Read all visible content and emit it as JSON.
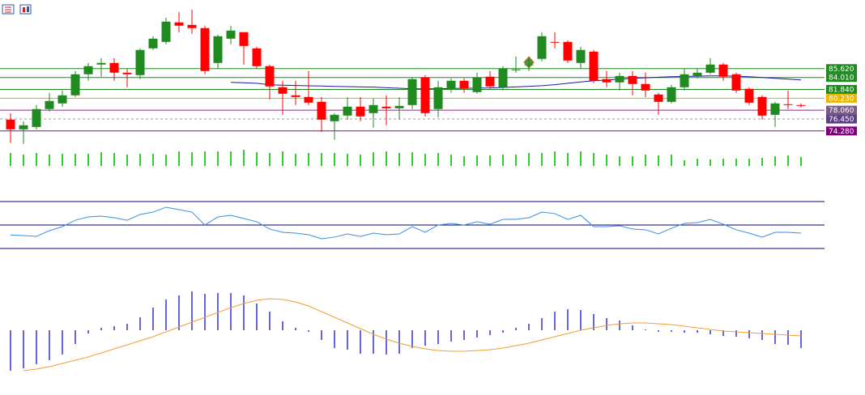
{
  "chart_data": [
    {
      "type": "candlestick",
      "up_color": "#1f8a1f",
      "down_color": "#ff0000",
      "ylim": [
        71.6,
        98.1
      ],
      "open": [
        76.34,
        74.57,
        75.01,
        78.26,
        79.29,
        80.76,
        84.59,
        86.36,
        86.65,
        84.88,
        84.44,
        89.3,
        90.48,
        94.02,
        93.57,
        92.99,
        86.65,
        91.07,
        92.25,
        89.3,
        86.06,
        82.23,
        80.76,
        80.46,
        79.58,
        76.05,
        77.08,
        78.7,
        77.52,
        78.7,
        78.4,
        78.99,
        84.0,
        78.26,
        81.94,
        83.41,
        81.35,
        84.15,
        82.23,
        85.33,
        86.36,
        87.39,
        90.48,
        90.48,
        86.65,
        88.71,
        83.71,
        83.12,
        84.29,
        82.82,
        80.91,
        79.58,
        82.23,
        84.29,
        84.88,
        86.36,
        84.59,
        81.94,
        80.46,
        77.22,
        79.14,
        78.99
      ],
      "high": [
        77.52,
        76.05,
        78.99,
        81.2,
        81.64,
        85.18,
        86.65,
        87.53,
        87.53,
        85.62,
        89.3,
        91.51,
        94.9,
        95.93,
        96.37,
        93.43,
        91.81,
        93.43,
        92.25,
        89.6,
        86.36,
        83.41,
        83.41,
        85.18,
        80.46,
        77.52,
        80.46,
        80.46,
        80.17,
        80.76,
        80.46,
        84.0,
        84.44,
        83.41,
        83.85,
        83.85,
        84.88,
        85.18,
        86.06,
        87.83,
        87.53,
        92.25,
        92.25,
        90.78,
        89.6,
        89.01,
        85.18,
        84.88,
        85.18,
        84.88,
        81.2,
        82.67,
        85.62,
        85.62,
        87.53,
        86.65,
        84.88,
        82.23,
        80.76,
        79.58,
        81.64,
        79.29
      ],
      "low": [
        72.07,
        71.92,
        74.57,
        77.81,
        78.7,
        80.46,
        83.41,
        84.15,
        83.41,
        82.23,
        83.71,
        89.01,
        90.04,
        92.25,
        91.95,
        84.59,
        85.62,
        90.04,
        86.36,
        85.62,
        80.02,
        77.22,
        78.99,
        78.99,
        74.13,
        72.66,
        76.34,
        76.05,
        74.87,
        75.31,
        76.34,
        78.26,
        76.93,
        76.78,
        81.2,
        81.2,
        81.05,
        81.94,
        81.64,
        84.88,
        85.18,
        86.95,
        89.3,
        86.65,
        85.62,
        82.97,
        82.23,
        81.64,
        80.76,
        80.46,
        77.22,
        79.29,
        81.64,
        83.85,
        84.59,
        83.41,
        81.2,
        78.99,
        76.34,
        75.01,
        78.26,
        78.55
      ],
      "close": [
        74.57,
        75.31,
        78.26,
        79.73,
        80.76,
        84.59,
        86.06,
        86.65,
        84.88,
        84.59,
        89.01,
        91.07,
        94.16,
        93.43,
        92.99,
        85.18,
        91.51,
        92.54,
        89.74,
        86.06,
        82.38,
        81.05,
        80.46,
        79.43,
        76.34,
        77.22,
        78.7,
        76.93,
        78.99,
        78.4,
        78.84,
        83.71,
        77.52,
        82.23,
        83.41,
        81.94,
        84.0,
        82.38,
        85.62,
        85.47,
        86.36,
        91.51,
        90.33,
        87.09,
        89.01,
        83.41,
        83.12,
        84.29,
        82.82,
        81.64,
        79.58,
        82.23,
        84.59,
        84.88,
        86.36,
        84.15,
        81.64,
        79.43,
        77.08,
        79.29,
        78.99,
        78.84
      ],
      "ma": {
        "color": "#1a1aa0",
        "values": [
          null,
          null,
          null,
          null,
          null,
          null,
          null,
          null,
          null,
          null,
          null,
          null,
          null,
          null,
          null,
          null,
          null,
          83.12,
          83.05,
          82.95,
          82.67,
          82.6,
          82.55,
          82.5,
          82.45,
          82.38,
          82.35,
          82.3,
          82.25,
          82.15,
          82.05,
          81.94,
          81.94,
          81.96,
          82.0,
          82.05,
          82.08,
          82.1,
          82.2,
          82.3,
          82.4,
          82.52,
          82.7,
          82.95,
          83.2,
          83.41,
          83.55,
          83.7,
          83.85,
          83.95,
          84.05,
          84.15,
          84.2,
          84.25,
          84.29,
          84.29,
          84.25,
          84.15,
          84.0,
          83.85,
          83.7,
          83.56
        ]
      },
      "levels": [
        {
          "value": 85.62,
          "label": "85.620",
          "color": "#1f8a1f",
          "box": "#1f8a1f",
          "dashed": false
        },
        {
          "value": 84.01,
          "label": "84.010",
          "color": "#1f8a1f",
          "box": "#1f8a1f",
          "dashed": false
        },
        {
          "value": 81.84,
          "label": "81.840",
          "color": "#1f8a1f",
          "box": "#1f8a1f",
          "dashed": false
        },
        {
          "value": 80.23,
          "label": "80.230",
          "color": "#e0a800",
          "box": "#e8b800",
          "dashed": false
        },
        {
          "value": 78.06,
          "label": "78.060",
          "color": "#8a2a8a",
          "box": "#7a5a8a",
          "dashed": false
        },
        {
          "value": 76.45,
          "label": "76.450",
          "color": "#999999",
          "box": "#5e3f86",
          "dashed": true
        },
        {
          "value": 74.28,
          "label": "74.280",
          "color": "#8a008a",
          "box": "#800080",
          "dashed": false
        }
      ]
    },
    {
      "type": "bar",
      "color": "#32cd32",
      "ylim": [
        0,
        25
      ],
      "values": [
        16,
        14,
        16,
        14,
        15,
        15,
        15,
        17,
        16,
        14,
        15,
        15,
        14,
        18,
        17,
        18,
        18,
        18,
        20,
        17,
        16,
        18,
        15,
        16,
        16,
        16,
        15,
        14,
        17,
        18,
        16,
        17,
        15,
        16,
        14,
        12,
        13,
        13,
        14,
        14,
        16,
        16,
        18,
        16,
        18,
        16,
        14,
        12,
        12,
        14,
        13,
        14,
        7,
        9,
        8,
        9,
        9,
        9,
        10,
        12,
        13,
        11
      ]
    },
    {
      "type": "line",
      "color": "#3a8ee0",
      "ylim": [
        20,
        80
      ],
      "hlines": [
        70,
        50,
        30
      ],
      "hline_color": "#000080",
      "values": [
        41.5,
        41.0,
        40.3,
        45.2,
        48.6,
        54.1,
        56.9,
        57.6,
        56.2,
        54.1,
        59.0,
        61.0,
        65.2,
        63.1,
        61.0,
        50.0,
        56.9,
        58.3,
        55.5,
        52.8,
        46.6,
        43.8,
        43.1,
        41.7,
        38.3,
        39.7,
        42.4,
        40.3,
        43.1,
        41.7,
        42.4,
        48.6,
        43.8,
        50.0,
        51.4,
        50.0,
        52.8,
        50.7,
        54.8,
        54.8,
        56.2,
        61.0,
        59.7,
        54.8,
        58.3,
        48.6,
        48.6,
        49.3,
        46.6,
        45.9,
        42.4,
        47.2,
        51.4,
        52.1,
        54.8,
        50.7,
        45.9,
        43.1,
        39.7,
        43.8,
        43.8,
        43.1
      ]
    },
    {
      "type": "macd",
      "color": "#0000cd",
      "signal_color": "#f0a030",
      "ylim": [
        -60,
        60
      ],
      "values": [
        -50,
        -47,
        -42,
        -37,
        -30,
        -17,
        -4,
        3,
        5,
        8,
        16,
        28,
        38,
        43,
        48,
        45,
        46,
        46,
        43,
        33,
        23,
        11,
        3,
        -2,
        -12,
        -22,
        -24,
        -29,
        -29,
        -30,
        -29,
        -22,
        -19,
        -17,
        -14,
        -12,
        -9,
        -6,
        -3,
        3,
        8,
        15,
        23,
        26,
        25,
        20,
        15,
        12,
        6,
        1,
        -2,
        -2,
        -3,
        -3,
        -5,
        -7,
        -8,
        -10,
        -12,
        -17,
        -18,
        -22
      ],
      "signal": [
        null,
        -50,
        -48,
        -45,
        -41,
        -37,
        -33,
        -28,
        -23,
        -18,
        -13,
        -8,
        -2,
        4,
        10,
        16,
        22,
        28,
        33,
        37,
        39,
        38,
        35,
        30,
        23,
        16,
        9,
        2,
        -5,
        -11,
        -16,
        -20,
        -23,
        -25,
        -26,
        -26,
        -25,
        -24,
        -22,
        -19,
        -16,
        -12,
        -8,
        -4,
        0,
        3,
        6,
        8,
        9,
        9,
        8,
        7,
        5,
        3,
        1,
        -1,
        -2,
        -3,
        -4,
        -5,
        -6,
        -7
      ]
    }
  ]
}
